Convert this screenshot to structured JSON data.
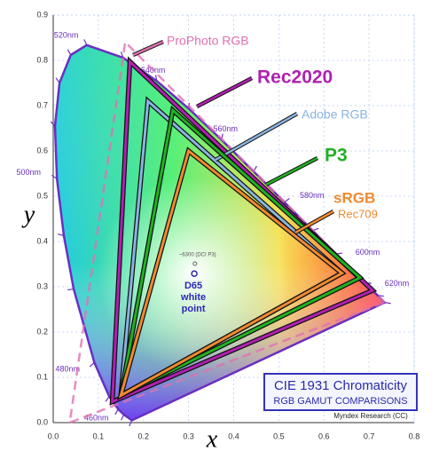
{
  "chart_data": {
    "type": "chromaticity",
    "xlabel": "x",
    "ylabel": "y",
    "xlim": [
      0,
      0.8
    ],
    "ylim": [
      0,
      0.9
    ],
    "xticks": [
      {
        "value": 0,
        "label": "0.0"
      },
      {
        "value": 0.1,
        "label": "0.1"
      },
      {
        "value": 0.2,
        "label": "0.2"
      },
      {
        "value": 0.3,
        "label": "0.3"
      },
      {
        "value": 0.4,
        "label": "0.4"
      },
      {
        "value": 0.5,
        "label": "0.5"
      },
      {
        "value": 0.6,
        "label": "0.6"
      },
      {
        "value": 0.7,
        "label": "0.7"
      },
      {
        "value": 0.8,
        "label": "0.8"
      }
    ],
    "yticks": [
      {
        "value": 0,
        "label": "0.0"
      },
      {
        "value": 0.1,
        "label": "0.1"
      },
      {
        "value": 0.2,
        "label": "0.2"
      },
      {
        "value": 0.3,
        "label": "0.3"
      },
      {
        "value": 0.4,
        "label": "0.4"
      },
      {
        "value": 0.5,
        "label": "0.5"
      },
      {
        "value": 0.6,
        "label": "0.6"
      },
      {
        "value": 0.7,
        "label": "0.7"
      },
      {
        "value": 0.8,
        "label": "0.8"
      },
      {
        "value": 0.9,
        "label": "0.9"
      }
    ],
    "grid": true,
    "locus": {
      "color": "#6a2fc0",
      "x": [
        0.1741,
        0.1566,
        0.144,
        0.1241,
        0.0913,
        0.0454,
        0.0235,
        0.0082,
        0.0039,
        0.0139,
        0.0389,
        0.0743,
        0.1547,
        0.2296,
        0.3016,
        0.3731,
        0.4441,
        0.5125,
        0.5752,
        0.627,
        0.6915,
        0.719,
        0.7347
      ],
      "y": [
        0.005,
        0.0177,
        0.0297,
        0.0578,
        0.1327,
        0.295,
        0.4127,
        0.5384,
        0.6548,
        0.7502,
        0.812,
        0.8338,
        0.8059,
        0.7543,
        0.6923,
        0.6245,
        0.5547,
        0.4866,
        0.4242,
        0.3725,
        0.3083,
        0.2809,
        0.2653
      ],
      "labels": [
        null,
        null,
        "460nm",
        null,
        "480nm",
        null,
        null,
        "500nm",
        null,
        null,
        null,
        "520nm",
        null,
        "540nm",
        null,
        "560nm",
        null,
        "580nm",
        null,
        "600nm",
        "620nm",
        null,
        null
      ]
    },
    "series": [
      {
        "name": "ProPhoto RGB",
        "color": "#e070b0",
        "x": [
          0.7347,
          0.1596,
          0.0366
        ],
        "y": [
          0.2653,
          0.8404,
          0.0001
        ]
      },
      {
        "name": "Rec2020",
        "color": "#b020b0",
        "x": [
          0.708,
          0.17,
          0.131
        ],
        "y": [
          0.292,
          0.797,
          0.046
        ]
      },
      {
        "name": "Adobe RGB",
        "color": "#8ab4e0",
        "x": [
          0.64,
          0.21,
          0.15
        ],
        "y": [
          0.33,
          0.71,
          0.06
        ]
      },
      {
        "name": "P3",
        "color": "#22b022",
        "x": [
          0.68,
          0.265,
          0.15
        ],
        "y": [
          0.32,
          0.69,
          0.06
        ]
      },
      {
        "name": "sRGB",
        "alias": "Rec709",
        "color": "#f08a30",
        "x": [
          0.64,
          0.3,
          0.15
        ],
        "y": [
          0.33,
          0.6,
          0.06
        ]
      }
    ],
    "white_point": {
      "label_lines": [
        "D65",
        "white",
        "point"
      ],
      "x": 0.3127,
      "y": 0.329
    },
    "dci_point": {
      "label": "~6300 (DCI P3)",
      "x": 0.314,
      "y": 0.351
    },
    "title": "CIE 1931 Chromaticity",
    "subtitle": "RGB GAMUT COMPARISONS",
    "credit": "Myndex Research (CC)"
  }
}
